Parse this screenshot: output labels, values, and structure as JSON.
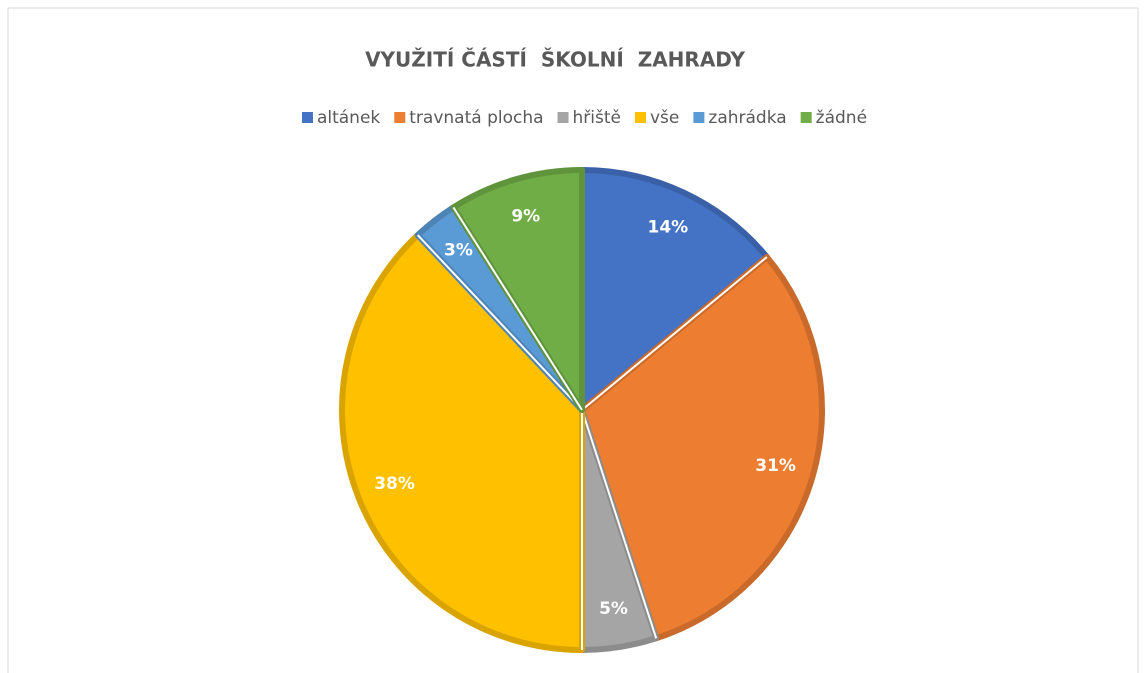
{
  "chart_data": {
    "type": "pie",
    "title": "VYUŽITÍ ČÁSTÍ  ŠKOLNÍ  ZAHRADY",
    "categories": [
      "altánek",
      "travnatá plocha",
      "hřiště",
      "vše",
      "zahrádka",
      "žádné"
    ],
    "values": [
      14,
      31,
      5,
      38,
      3,
      9
    ],
    "value_labels": [
      "14%",
      "31%",
      "5%",
      "38%",
      "3%",
      "9%"
    ],
    "colors": [
      "#4472c4",
      "#ed7d31",
      "#a5a5a5",
      "#ffc000",
      "#5b9bd5",
      "#70ad47"
    ],
    "legend": "top"
  }
}
